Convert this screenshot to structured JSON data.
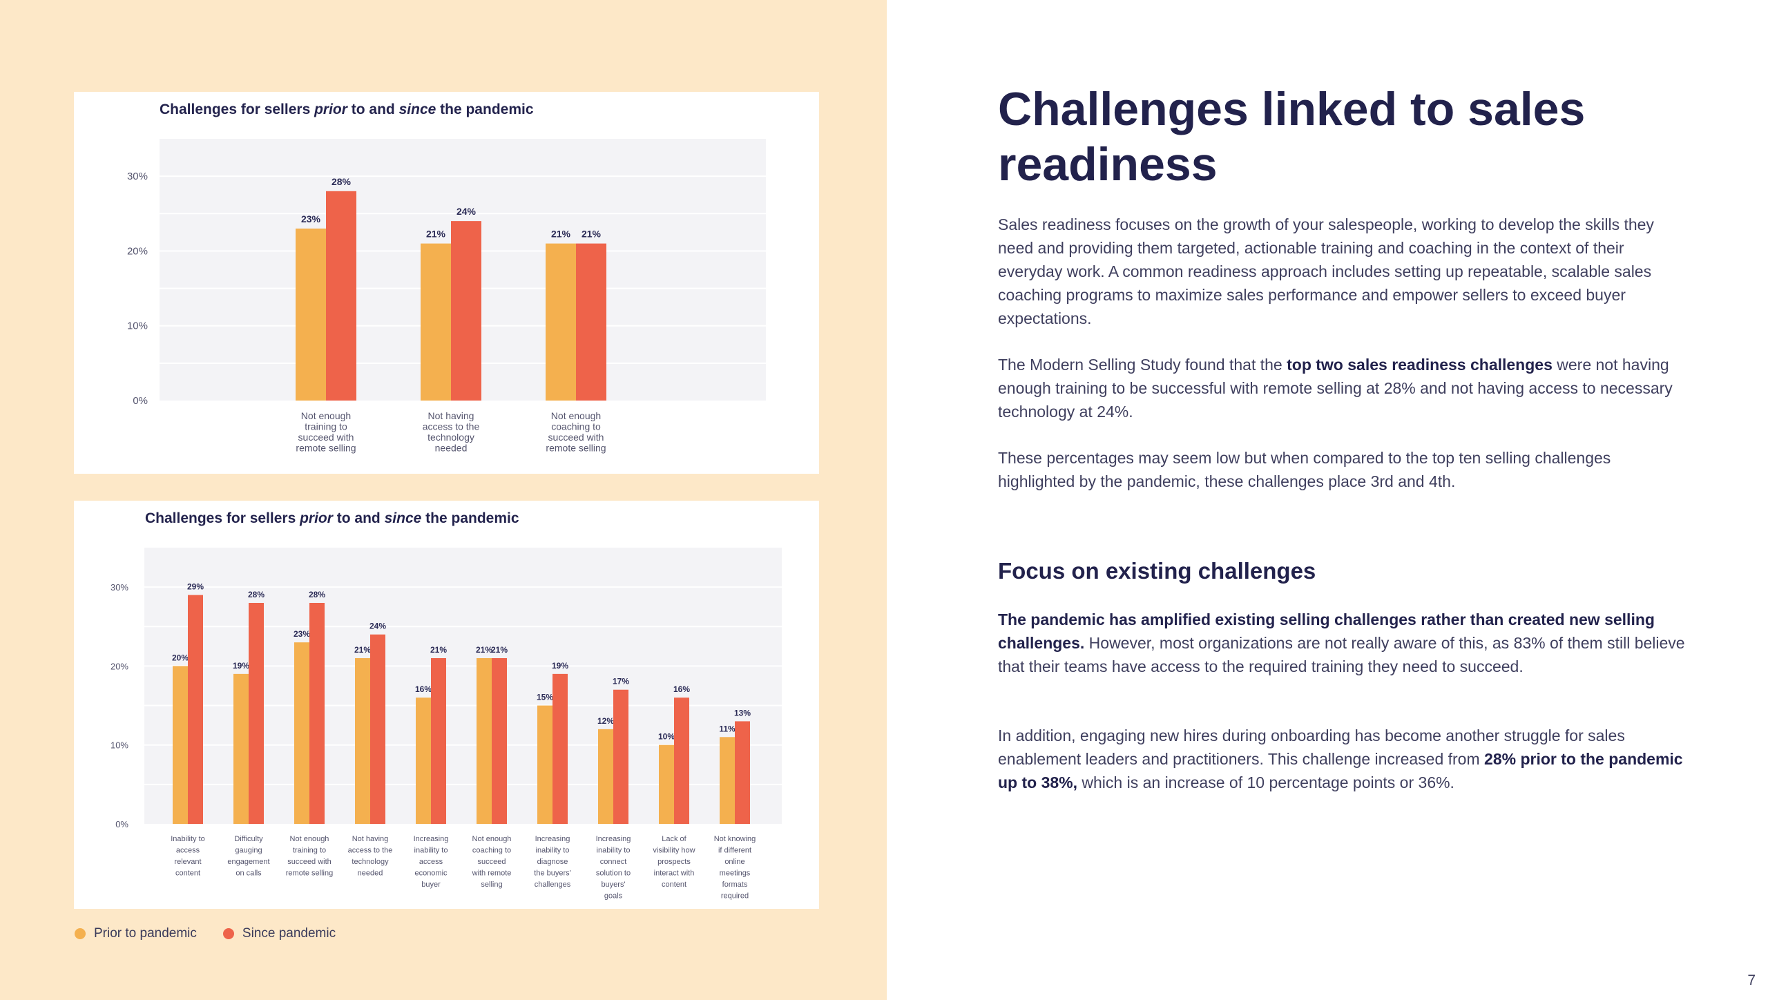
{
  "colors": {
    "prior": "#f4b04f",
    "since": "#ee634a",
    "plot_bg": "#f3f3f6",
    "grid": "#ffffff",
    "panel": "#fde8c8"
  },
  "charts": {
    "top": {
      "title_parts": [
        "Challenges for sellers ",
        "prior",
        " to and ",
        "since",
        " the pandemic"
      ]
    },
    "bottom": {
      "title_parts": [
        "Challenges for sellers ",
        "prior",
        " to and ",
        "since",
        " the pandemic"
      ]
    }
  },
  "legend": {
    "prior": "Prior to pandemic",
    "since": "Since pandemic"
  },
  "chart_data": [
    {
      "type": "bar",
      "title": "Challenges for sellers prior to and since the pandemic",
      "categories": [
        "Not enough training to succeed with remote selling",
        "Not having access to the technology needed",
        "Not enough coaching to succeed with remote selling"
      ],
      "category_lines": [
        [
          "Not enough",
          "training to",
          "succeed with",
          "remote selling"
        ],
        [
          "Not having",
          "access to the",
          "technology",
          "needed"
        ],
        [
          "Not enough",
          "coaching to",
          "succeed with",
          "remote selling"
        ]
      ],
      "series": [
        {
          "name": "Prior to pandemic",
          "values": [
            23,
            21,
            21
          ],
          "labels": [
            "23%",
            "21%",
            "21%"
          ]
        },
        {
          "name": "Since pandemic",
          "values": [
            28,
            24,
            21
          ],
          "labels": [
            "28%",
            "24%",
            "21%"
          ]
        }
      ],
      "yticks": [
        "0%",
        "10%",
        "20%",
        "30%"
      ],
      "ylim": [
        0,
        35
      ],
      "grid": true
    },
    {
      "type": "bar",
      "title": "Challenges for sellers prior to and since the pandemic",
      "categories": [
        "Inability to access relevant content",
        "Difficulty gauging engagement on calls",
        "Not enough training to succeed with remote selling",
        "Not having access to the technology needed",
        "Increasing inability to access economic buyer",
        "Not enough coaching to succeed with remote selling",
        "Increasing inability to diagnose the buyers' challenges",
        "Increasing inability to connect solution to buyers' goals",
        "Lack of visibility how prospects interact with content",
        "Not knowing if different online meetings formats required"
      ],
      "category_lines": [
        [
          "Inability to",
          "access",
          "relevant",
          "content"
        ],
        [
          "Difficulty",
          "gauging",
          "engagement",
          "on calls"
        ],
        [
          "Not enough",
          "training to",
          "succeed with",
          "remote selling"
        ],
        [
          "Not having",
          "access to the",
          "technology",
          "needed"
        ],
        [
          "Increasing",
          "inability to",
          "access",
          "economic",
          "buyer"
        ],
        [
          "Not enough",
          "coaching to",
          "succeed",
          "with remote",
          "selling"
        ],
        [
          "Increasing",
          "inability to",
          "diagnose",
          "the buyers'",
          "challenges"
        ],
        [
          "Increasing",
          "inability to",
          "connect",
          "solution to",
          "buyers'",
          "goals"
        ],
        [
          "Lack of",
          "visibility how",
          "prospects",
          "interact with",
          "content"
        ],
        [
          "Not knowing",
          "if different",
          "online",
          "meetings",
          "formats",
          "required"
        ]
      ],
      "series": [
        {
          "name": "Prior to pandemic",
          "values": [
            20,
            19,
            23,
            21,
            16,
            21,
            15,
            12,
            10,
            11
          ],
          "labels": [
            "20%",
            "19%",
            "23%",
            "21%",
            "16%",
            "21%",
            "15%",
            "12%",
            "10%",
            "11%"
          ]
        },
        {
          "name": "Since pandemic",
          "values": [
            29,
            28,
            28,
            24,
            21,
            21,
            19,
            17,
            16,
            13
          ],
          "labels": [
            "29%",
            "28%",
            "28%",
            "24%",
            "21%",
            "21%",
            "19%",
            "17%",
            "16%",
            "13%"
          ]
        }
      ],
      "yticks": [
        "0%",
        "10%",
        "20%",
        "30%"
      ],
      "ylim": [
        0,
        35
      ],
      "grid": true
    }
  ],
  "right": {
    "title": "Challenges linked to sales readiness",
    "p1": "Sales readiness focuses on the growth of your salespeople, working to develop the skills they need and providing them targeted, actionable training and coaching in the context of their everyday work. A common readiness approach includes setting up repeatable, scalable sales coaching programs to maximize sales performance and empower sellers to exceed buyer expectations.",
    "p2_a": "The Modern Selling Study found that the ",
    "p2_b": "top two sales readiness challenges",
    "p2_c": " were not having enough training to be successful with remote selling at 28% and not having access to necessary technology at 24%.",
    "p3": "These percentages may seem low but when compared to the top ten selling challenges highlighted by the pandemic, these challenges place 3rd and 4th.",
    "subtitle": "Focus on existing challenges",
    "p4_a": "The pandemic has amplified existing selling challenges rather than created new selling challenges.",
    "p4_b": " However, most organizations are not really aware of this, as 83% of them still believe that their teams have access to the required training they need to succeed.",
    "p5_a": "In addition, engaging new hires during onboarding has become another struggle for sales enablement leaders and practitioners. This challenge increased from ",
    "p5_b": "28% prior to the pandemic up to 38%,",
    "p5_c": " which is an increase of 10 percentage points or 36%.",
    "page_number": "7"
  }
}
